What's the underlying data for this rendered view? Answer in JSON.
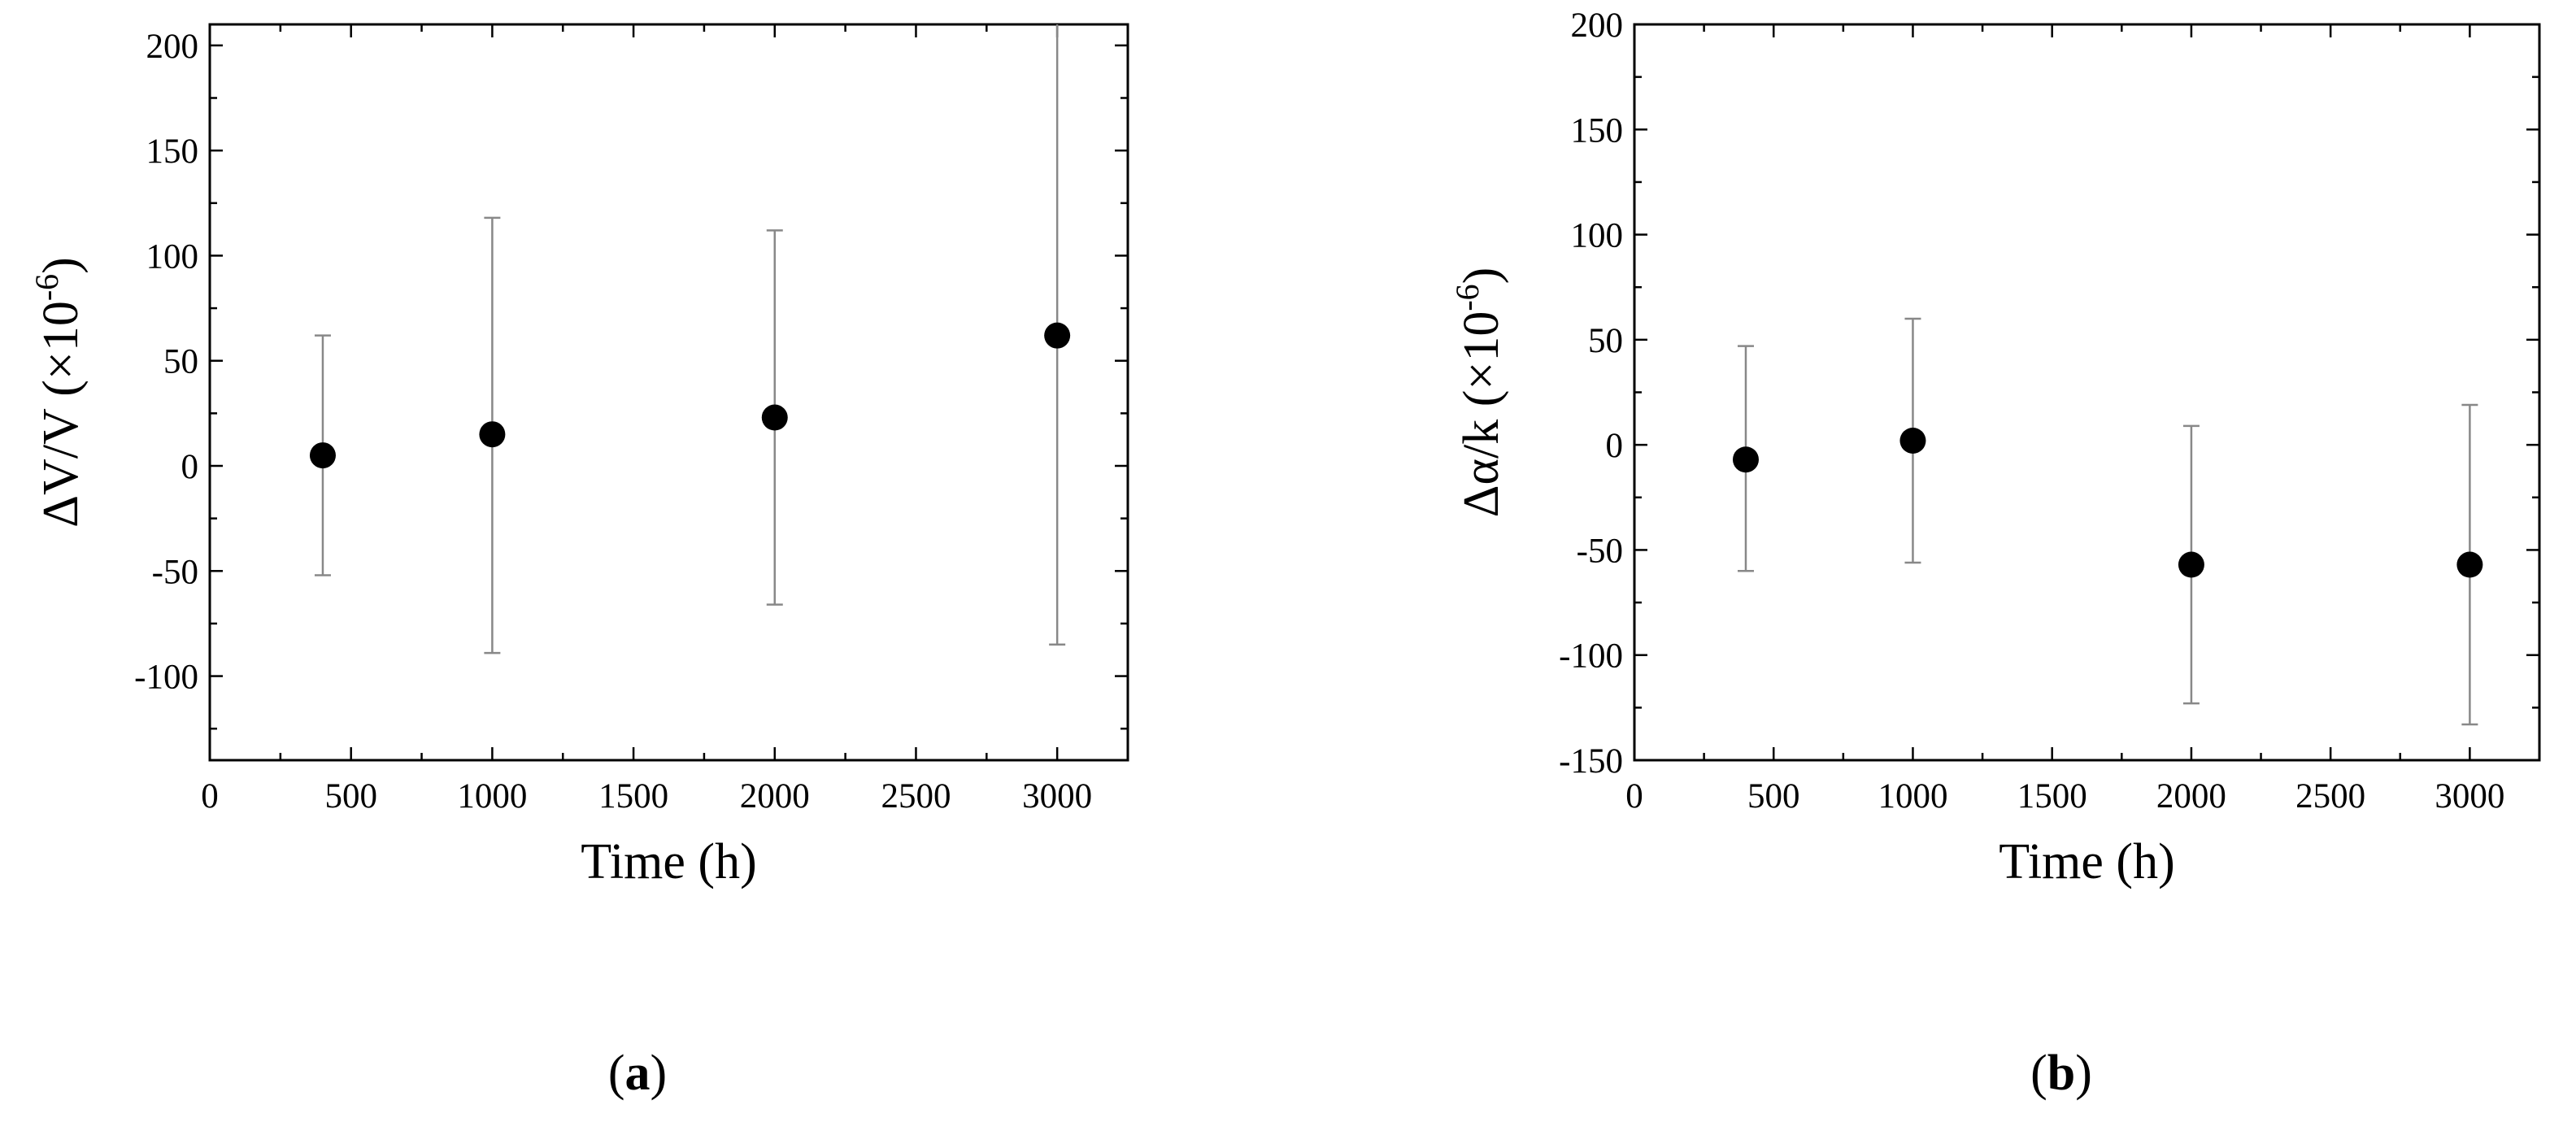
{
  "chart_data": [
    {
      "type": "scatter",
      "panel_label": "a",
      "xlabel": "Time (h)",
      "ylabel_prefix": "ΔV/V (×10",
      "ylabel_exp": "-6",
      "ylabel_suffix": ")",
      "xlim": [
        0,
        3250
      ],
      "ylim": [
        -140,
        210
      ],
      "xticks": [
        0,
        500,
        1000,
        1500,
        2000,
        2500,
        3000
      ],
      "yticks": [
        -100,
        -50,
        0,
        50,
        100,
        150,
        200
      ],
      "xtick_labels": [
        "0",
        "500",
        "1000",
        "1500",
        "2000",
        "2500",
        "3000"
      ],
      "ytick_labels": [
        "-100",
        "-50",
        "0",
        "50",
        "100",
        "150",
        "200"
      ],
      "grid": false,
      "points": [
        {
          "x": 400,
          "y": 5,
          "err_low": -52,
          "err_high": 62
        },
        {
          "x": 1000,
          "y": 15,
          "err_low": -89,
          "err_high": 118
        },
        {
          "x": 2000,
          "y": 23,
          "err_low": -66,
          "err_high": 112
        },
        {
          "x": 3000,
          "y": 62,
          "err_low": -85,
          "err_high": 210
        }
      ]
    },
    {
      "type": "scatter",
      "panel_label": "b",
      "xlabel": "Time (h)",
      "ylabel_prefix": "Δα/k (×10",
      "ylabel_exp": "-6",
      "ylabel_suffix": ")",
      "xlim": [
        0,
        3250
      ],
      "ylim": [
        -150,
        200
      ],
      "xticks": [
        0,
        500,
        1000,
        1500,
        2000,
        2500,
        3000
      ],
      "yticks": [
        -150,
        -100,
        -50,
        0,
        50,
        100,
        150,
        200
      ],
      "xtick_labels": [
        "0",
        "500",
        "1000",
        "1500",
        "2000",
        "2500",
        "3000"
      ],
      "ytick_labels": [
        "-150",
        "-100",
        "-50",
        "0",
        "50",
        "100",
        "150",
        "200"
      ],
      "grid": false,
      "points": [
        {
          "x": 400,
          "y": -7,
          "err_low": -60,
          "err_high": 47
        },
        {
          "x": 1000,
          "y": 2,
          "err_low": -56,
          "err_high": 60
        },
        {
          "x": 2000,
          "y": -57,
          "err_low": -123,
          "err_high": 9
        },
        {
          "x": 3000,
          "y": -57,
          "err_low": -133,
          "err_high": 19
        }
      ]
    }
  ]
}
